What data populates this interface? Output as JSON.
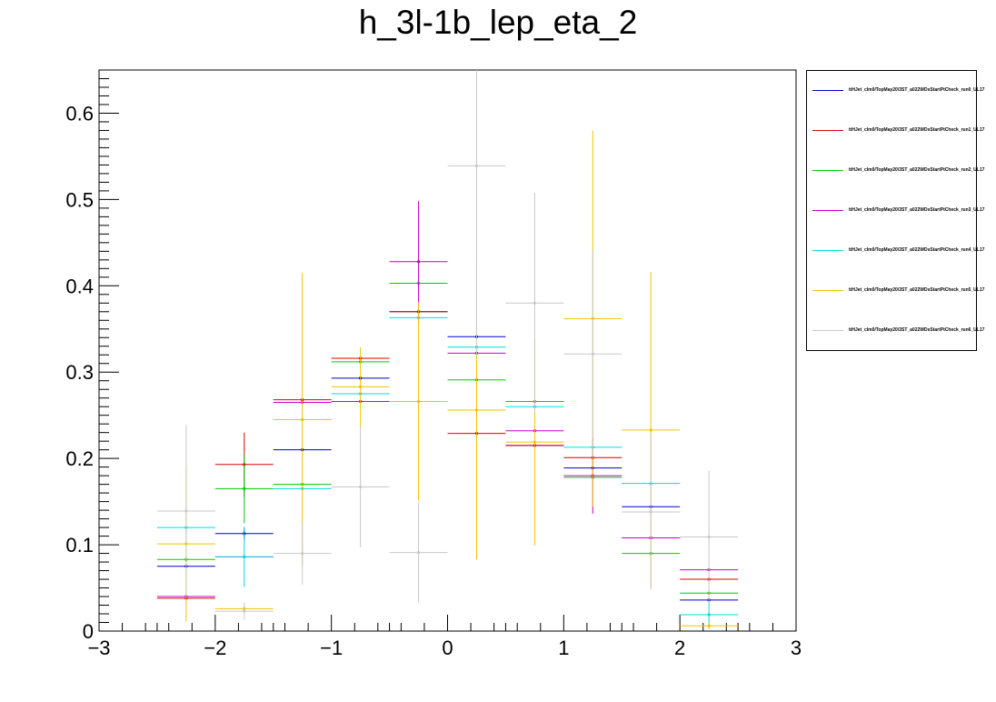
{
  "title": "h_3l-1b_lep_eta_2",
  "chart_data": {
    "type": "scatter",
    "title": "h_3l-1b_lep_eta_2",
    "xlabel": "",
    "ylabel": "",
    "xlim": [
      -3,
      3
    ],
    "ylim": [
      0,
      0.65
    ],
    "x_ticks": [
      -3,
      -2,
      -1,
      0,
      1,
      2,
      3
    ],
    "x_tick_labels": [
      "−3",
      "−2",
      "−1",
      "0",
      "1",
      "2",
      "3"
    ],
    "y_ticks": [
      0,
      0.1,
      0.2,
      0.3,
      0.4,
      0.5,
      0.6
    ],
    "y_tick_labels": [
      "0",
      "0.1",
      "0.2",
      "0.3",
      "0.4",
      "0.5",
      "0.6"
    ],
    "bin_centers": [
      -2.25,
      -1.75,
      -1.25,
      -0.75,
      -0.25,
      0.25,
      0.75,
      1.25,
      1.75,
      2.25
    ],
    "bin_half_width": 0.25,
    "legend_position": "right",
    "series": [
      {
        "name": "ttHJet_cIm0/TopMay20/3ST_a022WDsStartPtCheck_run0_UL17",
        "color": "#0000cc",
        "values": [
          0.075,
          0.113,
          0.21,
          0.293,
          0.37,
          0.341,
          0.215,
          0.189,
          0.144,
          0.036
        ],
        "errors": [
          0.0,
          0.006,
          0.0,
          0.0,
          0.0,
          0.0,
          0.0,
          0.0,
          0.0,
          0.0
        ]
      },
      {
        "name": "ttHJet_cIm0/TopMay20/3ST_a022WDsStartPtCheck_run1_UL17",
        "color": "#dd0000",
        "values": [
          0.038,
          0.193,
          0.268,
          0.316,
          0.37,
          0.229,
          0.215,
          0.201,
          0.108,
          0.06
        ],
        "errors": [
          0.0,
          0.037,
          0.0,
          0.0,
          0.0,
          0.0,
          0.0,
          0.0,
          0.0,
          0.0
        ]
      },
      {
        "name": "ttHJet_cIm0/TopMay20/3ST_a022WDsStartPtCheck_run2_UL17",
        "color": "#00cc00",
        "values": [
          0.083,
          0.165,
          0.17,
          0.312,
          0.403,
          0.291,
          0.266,
          0.178,
          0.09,
          0.044
        ],
        "errors": [
          0.0,
          0.04,
          0.0,
          0.0,
          0.0,
          0.0,
          0.0,
          0.0,
          0.0,
          0.0
        ]
      },
      {
        "name": "ttHJet_cIm0/TopMay20/3ST_a022WDsStartPtCheck_run3_UL17",
        "color": "#cc00cc",
        "values": [
          0.04,
          0.086,
          0.265,
          0.266,
          0.428,
          0.322,
          0.232,
          0.18,
          0.108,
          0.071
        ],
        "errors": [
          0.0,
          0.0,
          0.0,
          0.0,
          0.07,
          0.0,
          0.0,
          0.044,
          0.0,
          0.0
        ]
      },
      {
        "name": "ttHJet_cIm0/TopMay20/3ST_a022WDsStartPtCheck_run4_UL17",
        "color": "#00dddd",
        "values": [
          0.12,
          0.086,
          0.165,
          0.275,
          0.363,
          0.329,
          0.26,
          0.213,
          0.171,
          0.019
        ],
        "errors": [
          0.0,
          0.035,
          0.0,
          0.0,
          0.0,
          0.0,
          0.0,
          0.0,
          0.0,
          0.015
        ]
      },
      {
        "name": "ttHJet_cIm0/TopMay20/3ST_a022WDsStartPtCheck_run5_UL17",
        "color": "#f2c200",
        "values": [
          0.101,
          0.026,
          0.245,
          0.283,
          0.266,
          0.256,
          0.219,
          0.362,
          0.233,
          0.006
        ],
        "errors": [
          0.09,
          0.004,
          0.17,
          0.046,
          0.115,
          0.173,
          0.12,
          0.218,
          0.183,
          0.004
        ]
      },
      {
        "name": "ttHJet_cIm0/TopMay20/3ST_a022WDsStartPtCheck_run6_UL17",
        "color": "#c8c8c8",
        "values": [
          0.139,
          0.023,
          0.09,
          0.167,
          0.091,
          0.539,
          0.38,
          0.321,
          0.138,
          0.109
        ],
        "errors": [
          0.1,
          0.01,
          0.036,
          0.07,
          0.058,
          0.22,
          0.128,
          0.12,
          0.09,
          0.077
        ]
      }
    ]
  }
}
